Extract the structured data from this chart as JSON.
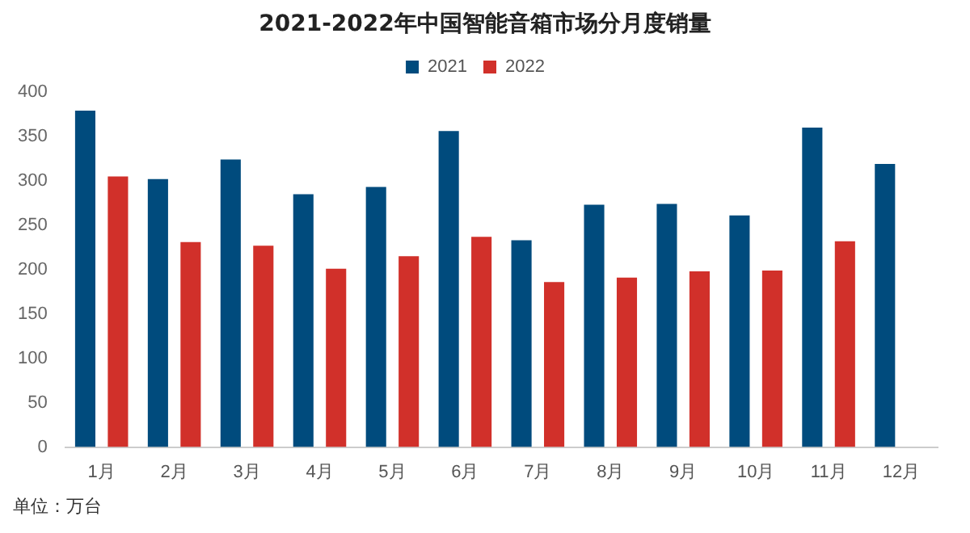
{
  "chart_data": {
    "type": "bar",
    "title": "2021-2022年中国智能音箱市场分月度销量",
    "categories": [
      "1月",
      "2月",
      "3月",
      "4月",
      "5月",
      "6月",
      "7月",
      "8月",
      "9月",
      "10月",
      "11月",
      "12月"
    ],
    "series": [
      {
        "name": "2021",
        "color": "#004b7d",
        "values": [
          379,
          302,
          324,
          285,
          293,
          356,
          233,
          273,
          274,
          261,
          360,
          319
        ]
      },
      {
        "name": "2022",
        "color": "#d1302a",
        "values": [
          305,
          231,
          227,
          201,
          215,
          237,
          186,
          191,
          198,
          199,
          232,
          null
        ]
      }
    ],
    "ylim": [
      0,
      400
    ],
    "yticks": [
      0,
      50,
      100,
      150,
      200,
      250,
      300,
      350,
      400
    ],
    "grid": false,
    "legend": "top",
    "annotations": [
      "单位：万台"
    ]
  }
}
